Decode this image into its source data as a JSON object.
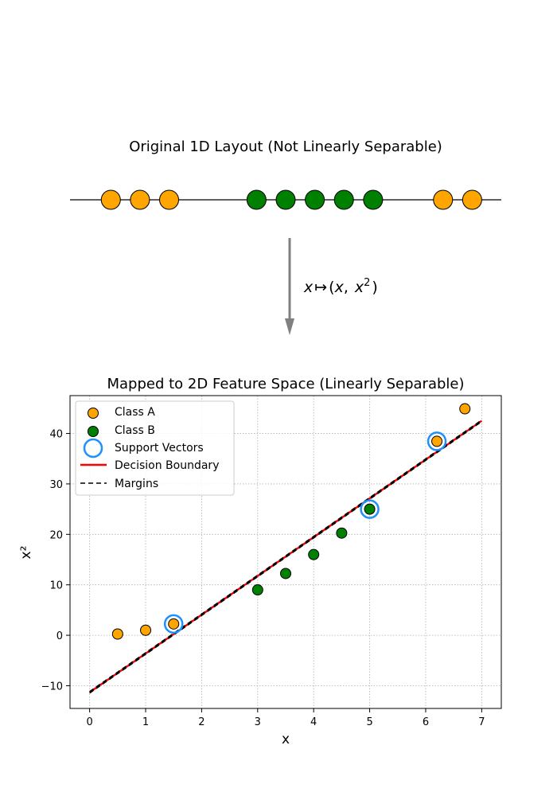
{
  "colors": {
    "class_a": "#FFA500",
    "class_b": "#008000",
    "support_vector_ring": "#1E90FF",
    "decision_boundary": "#FF0000",
    "margin": "#000000",
    "arrow": "#808080",
    "grid": "#B0B0B0"
  },
  "arrow_label": {
    "var": "x",
    "maps_to": "↦",
    "open": "(",
    "x": "x",
    "comma": ",",
    "x2_base": "x",
    "x2_exp": "2",
    "close": ")"
  },
  "chart_data": [
    {
      "type": "scatter",
      "title": "Original 1D Layout (Not Linearly Separable)",
      "axis_visible": false,
      "xlim": [
        -0.2,
        7.2
      ],
      "points": [
        {
          "x": 0.5,
          "class": "A"
        },
        {
          "x": 1.0,
          "class": "A"
        },
        {
          "x": 1.5,
          "class": "A"
        },
        {
          "x": 3.0,
          "class": "B"
        },
        {
          "x": 3.5,
          "class": "B"
        },
        {
          "x": 4.0,
          "class": "B"
        },
        {
          "x": 4.5,
          "class": "B"
        },
        {
          "x": 5.0,
          "class": "B"
        },
        {
          "x": 6.2,
          "class": "A"
        },
        {
          "x": 6.7,
          "class": "A"
        }
      ]
    },
    {
      "type": "scatter",
      "title": "Mapped to 2D Feature Space (Linearly Separable)",
      "xlabel": "x",
      "ylabel": "x²",
      "xlim": [
        -0.35,
        7.35
      ],
      "ylim": [
        -14.5,
        47.5
      ],
      "xticks": [
        0,
        1,
        2,
        3,
        4,
        5,
        6,
        7
      ],
      "yticks": [
        -10,
        0,
        10,
        20,
        30,
        40
      ],
      "grid": true,
      "legend_position": "top-left",
      "legend": [
        "Class A",
        "Class B",
        "Support Vectors",
        "Decision Boundary",
        "Margins"
      ],
      "series": [
        {
          "name": "Class A",
          "x": [
            0.5,
            1.0,
            1.5,
            6.2,
            6.7
          ],
          "y": [
            0.25,
            1.0,
            2.25,
            38.44,
            44.89
          ]
        },
        {
          "name": "Class B",
          "x": [
            3.0,
            3.5,
            4.0,
            4.5,
            5.0
          ],
          "y": [
            9.0,
            12.25,
            16.0,
            20.25,
            25.0
          ]
        },
        {
          "name": "Support Vectors",
          "x": [
            1.5,
            5.0,
            6.2
          ],
          "y": [
            2.25,
            25.0,
            38.44
          ]
        }
      ],
      "decision_boundary": {
        "name": "Decision Boundary",
        "x": [
          0,
          7
        ],
        "y": [
          -11.3,
          42.5
        ]
      },
      "margins": [
        {
          "name": "Margins",
          "x": [
            0,
            7
          ],
          "y": [
            -11.45,
            42.35
          ]
        },
        {
          "name": "Margins",
          "x": [
            0,
            7
          ],
          "y": [
            -11.15,
            42.65
          ]
        }
      ]
    }
  ]
}
